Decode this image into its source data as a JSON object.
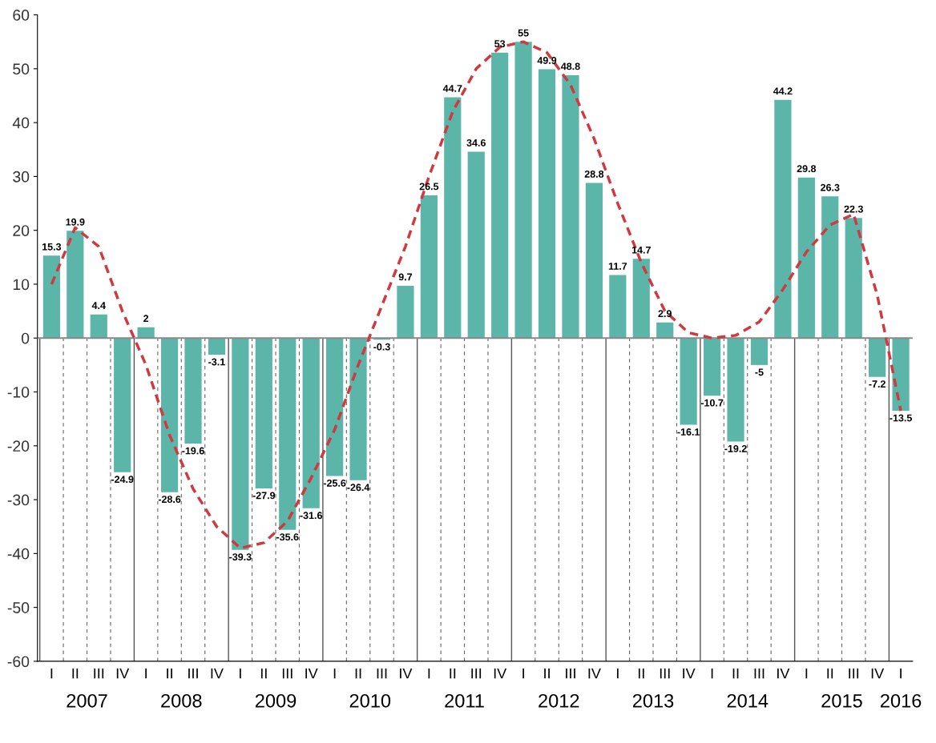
{
  "chart_data": {
    "type": "bar",
    "categories": [
      "I",
      "II",
      "III",
      "IV",
      "I",
      "II",
      "III",
      "IV",
      "I",
      "II",
      "III",
      "IV",
      "I",
      "II",
      "III",
      "IV",
      "I",
      "II",
      "III",
      "IV",
      "I",
      "II",
      "III",
      "IV",
      "I",
      "II",
      "III",
      "IV",
      "I",
      "II",
      "III",
      "IV",
      "I",
      "II",
      "III",
      "IV",
      "I"
    ],
    "series": [
      {
        "color": "#5bb5a8",
        "values": [
          15.3,
          19.9,
          4.4,
          -24.9,
          2,
          -28.6,
          -19.6,
          -3.1,
          -39.3,
          -27.9,
          -35.6,
          -31.6,
          -25.6,
          -26.4,
          -0.3,
          9.7,
          26.5,
          44.7,
          34.6,
          53,
          55,
          49.9,
          48.8,
          28.8,
          11.7,
          14.7,
          2.9,
          -16.1,
          -10.7,
          -19.2,
          -5,
          44.2,
          29.8,
          26.3,
          22.3,
          -7.2,
          -13.5
        ],
        "value_labels": [
          "15.3",
          "19.9",
          "4.4",
          "-24.9",
          "2",
          "-28.6",
          "-19.6",
          "-3.1",
          "-39.3",
          "-27.9",
          "-35.6",
          "-31.6",
          "-25.6",
          "-26.4",
          "-0.3",
          "9.7",
          "26.5",
          "44.7",
          "34.6",
          "53",
          "55",
          "49.9",
          "48.8",
          "28.8",
          "11.7",
          "14.7",
          "2.9",
          "-16.1",
          "-10.7",
          "-19.2",
          "-5",
          "44.2",
          "29.8",
          "26.3",
          "22.3",
          "-7.2",
          "-13.5"
        ]
      },
      {
        "type": "line",
        "color": "#d0393f",
        "line_style": "dashed",
        "values": [
          10,
          20.5,
          17,
          5,
          -5,
          -18,
          -28,
          -35,
          -39,
          -38,
          -34,
          -26,
          -17,
          -5,
          6,
          17,
          30,
          42,
          50,
          54,
          55,
          53,
          47,
          37,
          25,
          14,
          5,
          1,
          0,
          0.5,
          3,
          9,
          16,
          21,
          23,
          8,
          -13.5
        ]
      }
    ],
    "ylim": [
      -60,
      60
    ],
    "yticks": [
      -60,
      -50,
      -40,
      -30,
      -20,
      -10,
      0,
      10,
      20,
      30,
      40,
      50,
      60
    ],
    "ref_lines": [
      {
        "axis": "y",
        "value": 0,
        "color": "#888888"
      }
    ],
    "annotations": [
      "2007",
      "2008",
      "2009",
      "2010",
      "2011",
      "2012",
      "2013",
      "2014",
      "2015",
      "2016"
    ]
  }
}
